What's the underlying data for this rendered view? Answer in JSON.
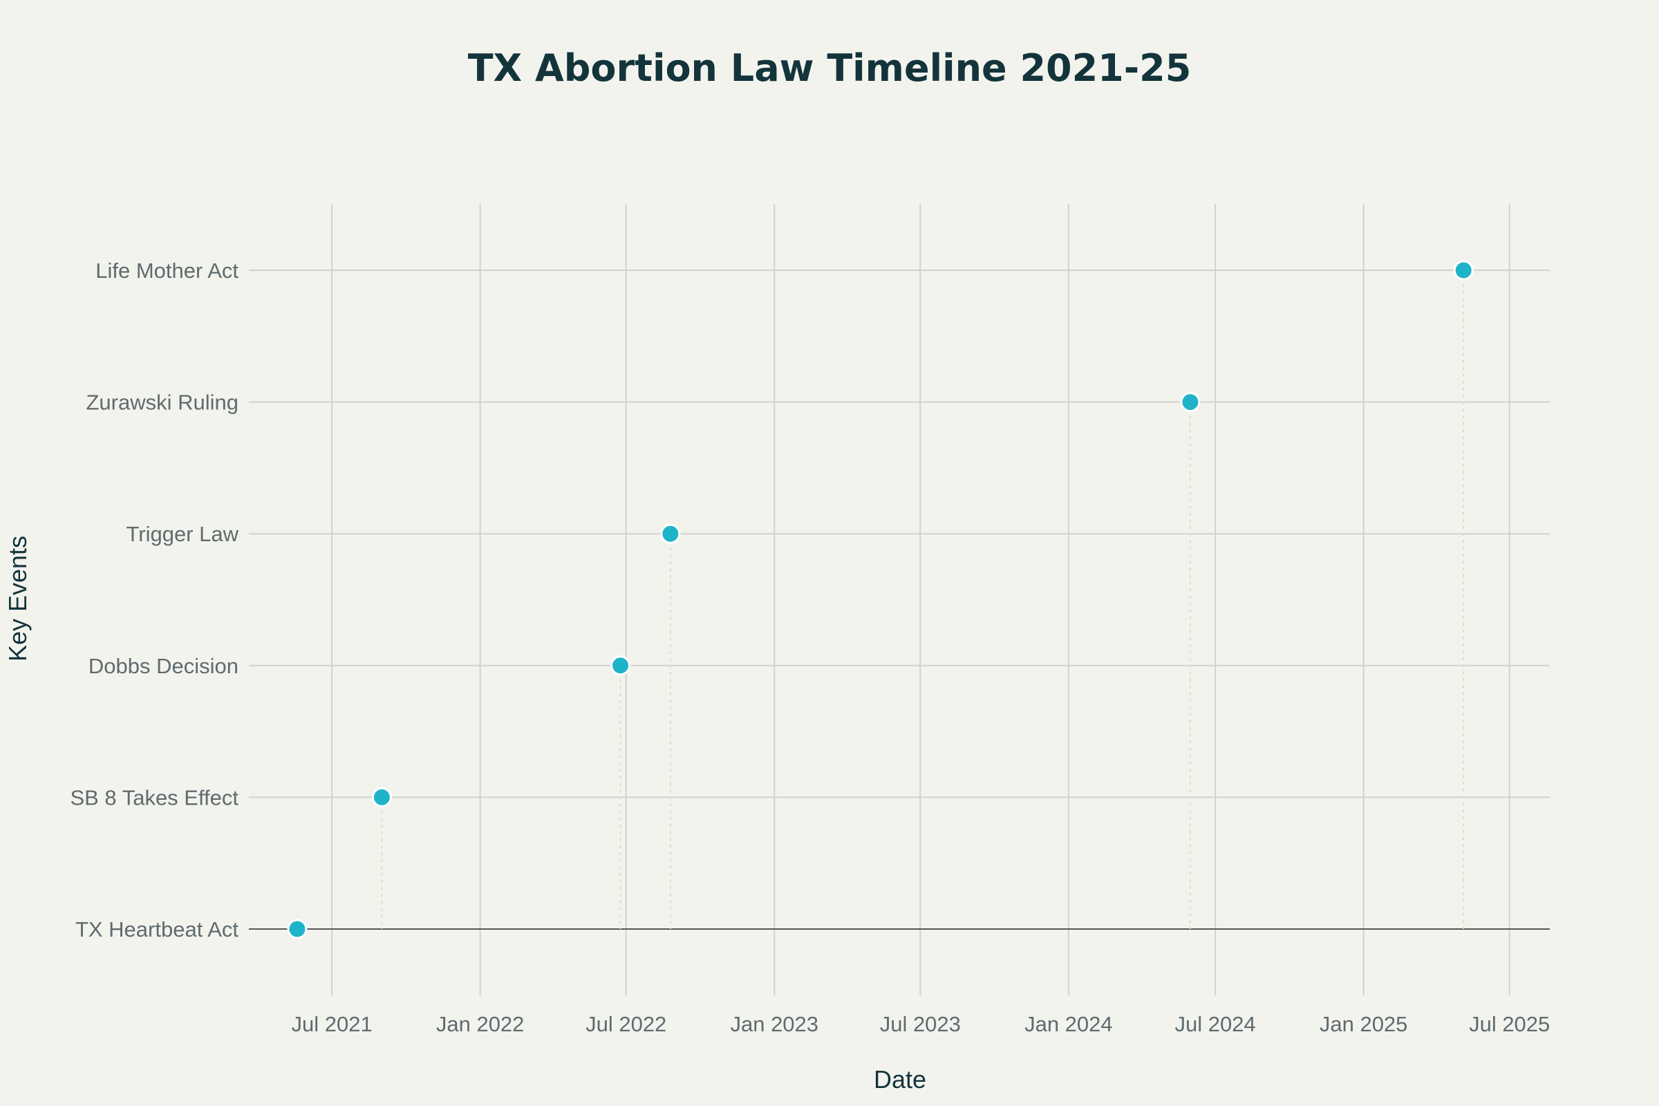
{
  "chart_data": {
    "type": "scatter",
    "title": "TX Abortion Law Timeline 2021-25",
    "xlabel": "Date",
    "ylabel": "Key Events",
    "xlim": [
      "2021-03-20",
      "2025-08-20"
    ],
    "x_ticks": [
      {
        "date": "2021-07-01",
        "label": "Jul 2021"
      },
      {
        "date": "2022-01-01",
        "label": "Jan 2022"
      },
      {
        "date": "2022-07-01",
        "label": "Jul 2022"
      },
      {
        "date": "2023-01-01",
        "label": "Jan 2023"
      },
      {
        "date": "2023-07-01",
        "label": "Jul 2023"
      },
      {
        "date": "2024-01-01",
        "label": "Jan 2024"
      },
      {
        "date": "2024-07-01",
        "label": "Jul 2024"
      },
      {
        "date": "2025-01-01",
        "label": "Jan 2025"
      },
      {
        "date": "2025-07-01",
        "label": "Jul 2025"
      }
    ],
    "categories": [
      "TX Heartbeat Act",
      "SB 8 Takes Effect",
      "Dobbs Decision",
      "Trigger Law",
      "Zurawski Ruling",
      "Life Mother Act"
    ],
    "points": [
      {
        "event": "TX Heartbeat Act",
        "date": "2021-05-19"
      },
      {
        "event": "SB 8 Takes Effect",
        "date": "2021-09-01"
      },
      {
        "event": "Dobbs Decision",
        "date": "2022-06-24"
      },
      {
        "event": "Trigger Law",
        "date": "2022-08-25"
      },
      {
        "event": "Zurawski Ruling",
        "date": "2024-05-31"
      },
      {
        "event": "Life Mother Act",
        "date": "2025-05-05"
      }
    ],
    "grid": true,
    "colors": {
      "marker": "#1fb3c9",
      "marker_outline": "#ffffff",
      "stem": "#d6dfc8",
      "baseline": "#555555"
    }
  }
}
